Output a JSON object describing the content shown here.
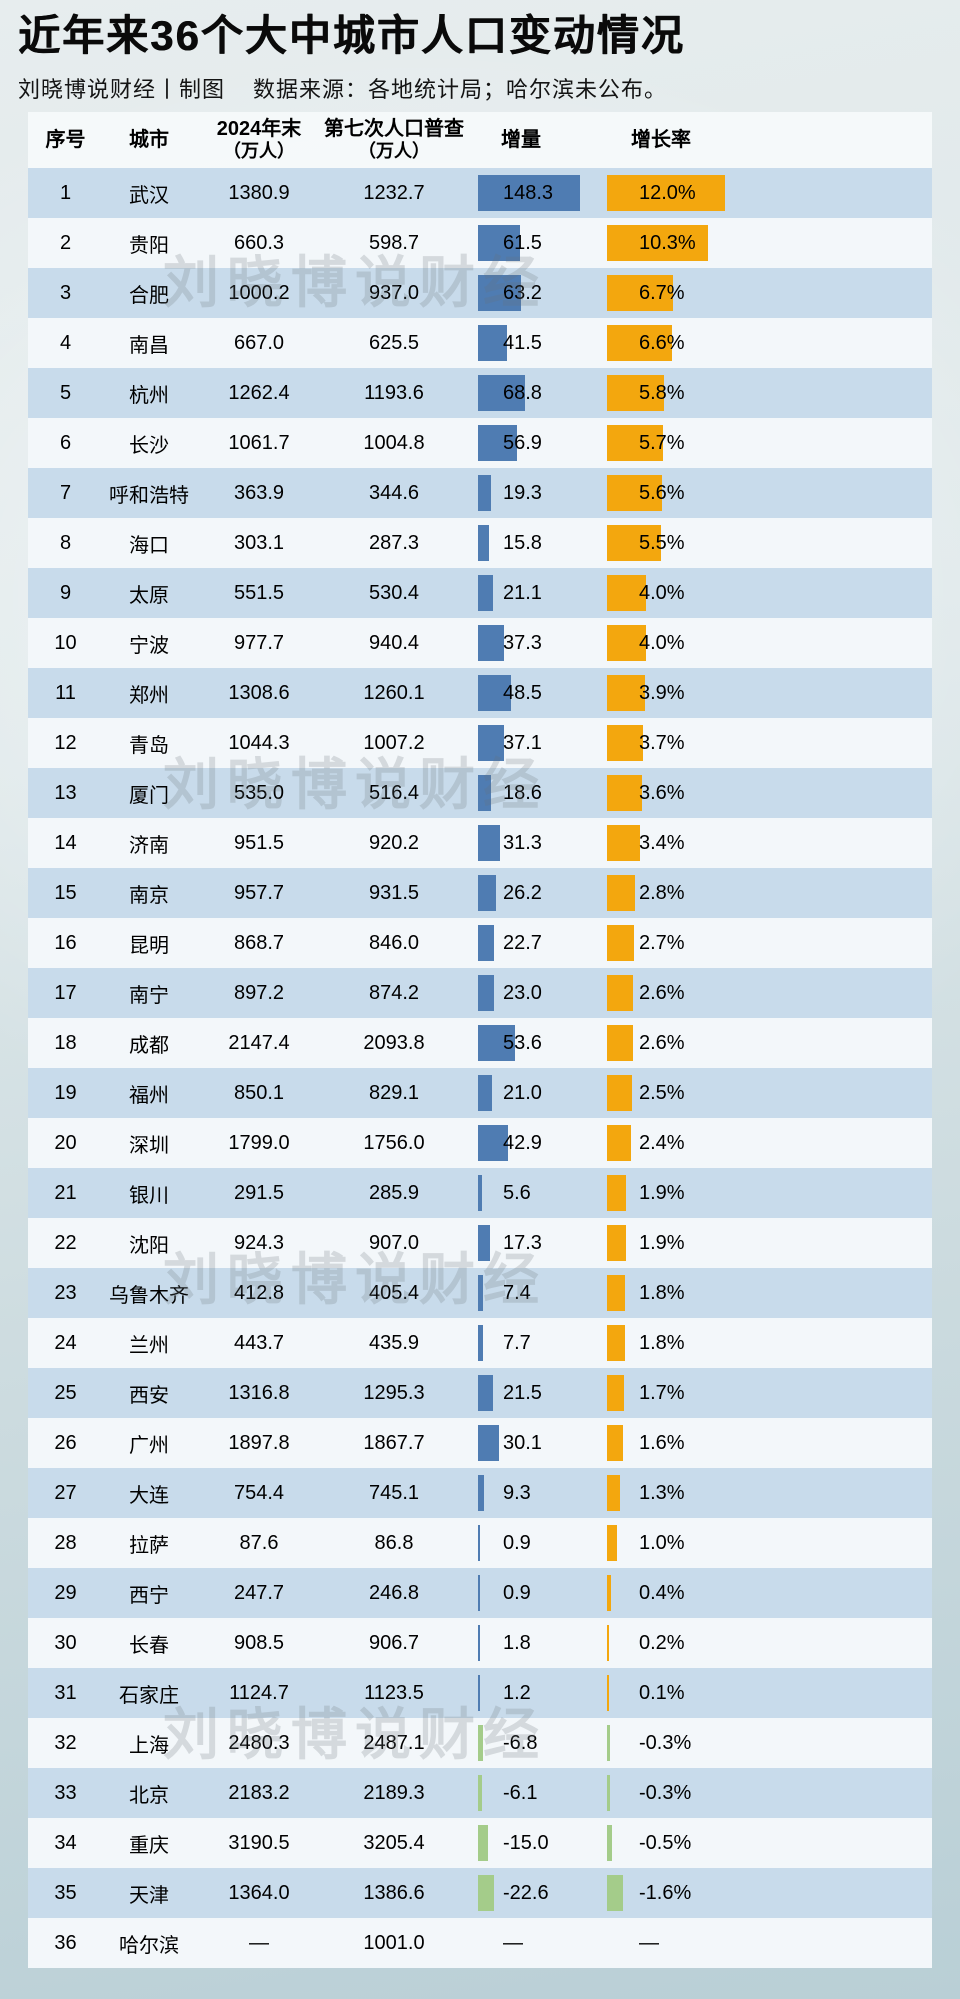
{
  "page": {
    "title": "近年来36个大中城市人口变动情况",
    "byline": "刘晓博说财经丨制图",
    "source_note": "数据来源：各地统计局；哈尔滨未公布。"
  },
  "watermark": {
    "text": "刘晓博说财经"
  },
  "chart_data": {
    "type": "table",
    "title": "近年来36个大中城市人口变动情况",
    "subtitle": "刘晓博说财经丨制图  数据来源：各地统计局；哈尔滨未公布。",
    "bar_columns": {
      "delta": {
        "max_abs_value": 148.3,
        "unit": "万人"
      },
      "rate": {
        "max_abs_value": 12.0,
        "unit": "%"
      }
    },
    "colors": {
      "delta_bar": "#4f7cb2",
      "rate_bar": "#f3a70e",
      "negative_bar": "#a4cc8a",
      "row_stripe": "#c8dbeb",
      "row_plain": "#f3f7fa"
    },
    "columns": [
      {
        "label": "序号"
      },
      {
        "label": "城市"
      },
      {
        "label": "2024年末",
        "sub": "（万人）"
      },
      {
        "label": "第七次人口普查",
        "sub": "（万人）"
      },
      {
        "label": "增量"
      },
      {
        "label": "增长率"
      }
    ],
    "row_fields": [
      "no",
      "city",
      "pop_2024",
      "census_7th",
      "delta_label",
      "delta_value",
      "rate_label",
      "rate_value"
    ],
    "rows": [
      [
        "1",
        "武汉",
        "1380.9",
        "1232.7",
        "148.3",
        148.3,
        "12.0%",
        12.0
      ],
      [
        "2",
        "贵阳",
        "660.3",
        "598.7",
        "61.5",
        61.5,
        "10.3%",
        10.3
      ],
      [
        "3",
        "合肥",
        "1000.2",
        "937.0",
        "63.2",
        63.2,
        "6.7%",
        6.7
      ],
      [
        "4",
        "南昌",
        "667.0",
        "625.5",
        "41.5",
        41.5,
        "6.6%",
        6.6
      ],
      [
        "5",
        "杭州",
        "1262.4",
        "1193.6",
        "68.8",
        68.8,
        "5.8%",
        5.8
      ],
      [
        "6",
        "长沙",
        "1061.7",
        "1004.8",
        "56.9",
        56.9,
        "5.7%",
        5.7
      ],
      [
        "7",
        "呼和浩特",
        "363.9",
        "344.6",
        "19.3",
        19.3,
        "5.6%",
        5.6
      ],
      [
        "8",
        "海口",
        "303.1",
        "287.3",
        "15.8",
        15.8,
        "5.5%",
        5.5
      ],
      [
        "9",
        "太原",
        "551.5",
        "530.4",
        "21.1",
        21.1,
        "4.0%",
        4.0
      ],
      [
        "10",
        "宁波",
        "977.7",
        "940.4",
        "37.3",
        37.3,
        "4.0%",
        4.0
      ],
      [
        "11",
        "郑州",
        "1308.6",
        "1260.1",
        "48.5",
        48.5,
        "3.9%",
        3.9
      ],
      [
        "12",
        "青岛",
        "1044.3",
        "1007.2",
        "37.1",
        37.1,
        "3.7%",
        3.7
      ],
      [
        "13",
        "厦门",
        "535.0",
        "516.4",
        "18.6",
        18.6,
        "3.6%",
        3.6
      ],
      [
        "14",
        "济南",
        "951.5",
        "920.2",
        "31.3",
        31.3,
        "3.4%",
        3.4
      ],
      [
        "15",
        "南京",
        "957.7",
        "931.5",
        "26.2",
        26.2,
        "2.8%",
        2.8
      ],
      [
        "16",
        "昆明",
        "868.7",
        "846.0",
        "22.7",
        22.7,
        "2.7%",
        2.7
      ],
      [
        "17",
        "南宁",
        "897.2",
        "874.2",
        "23.0",
        23.0,
        "2.6%",
        2.6
      ],
      [
        "18",
        "成都",
        "2147.4",
        "2093.8",
        "53.6",
        53.6,
        "2.6%",
        2.6
      ],
      [
        "19",
        "福州",
        "850.1",
        "829.1",
        "21.0",
        21.0,
        "2.5%",
        2.5
      ],
      [
        "20",
        "深圳",
        "1799.0",
        "1756.0",
        "42.9",
        42.9,
        "2.4%",
        2.4
      ],
      [
        "21",
        "银川",
        "291.5",
        "285.9",
        "5.6",
        5.6,
        "1.9%",
        1.9
      ],
      [
        "22",
        "沈阳",
        "924.3",
        "907.0",
        "17.3",
        17.3,
        "1.9%",
        1.9
      ],
      [
        "23",
        "乌鲁木齐",
        "412.8",
        "405.4",
        "7.4",
        7.4,
        "1.8%",
        1.8
      ],
      [
        "24",
        "兰州",
        "443.7",
        "435.9",
        "7.7",
        7.7,
        "1.8%",
        1.8
      ],
      [
        "25",
        "西安",
        "1316.8",
        "1295.3",
        "21.5",
        21.5,
        "1.7%",
        1.7
      ],
      [
        "26",
        "广州",
        "1897.8",
        "1867.7",
        "30.1",
        30.1,
        "1.6%",
        1.6
      ],
      [
        "27",
        "大连",
        "754.4",
        "745.1",
        "9.3",
        9.3,
        "1.3%",
        1.3
      ],
      [
        "28",
        "拉萨",
        "87.6",
        "86.8",
        "0.9",
        0.9,
        "1.0%",
        1.0
      ],
      [
        "29",
        "西宁",
        "247.7",
        "246.8",
        "0.9",
        0.9,
        "0.4%",
        0.4
      ],
      [
        "30",
        "长春",
        "908.5",
        "906.7",
        "1.8",
        1.8,
        "0.2%",
        0.2
      ],
      [
        "31",
        "石家庄",
        "1124.7",
        "1123.5",
        "1.2",
        1.2,
        "0.1%",
        0.1
      ],
      [
        "32",
        "上海",
        "2480.3",
        "2487.1",
        "-6.8",
        -6.8,
        "-0.3%",
        -0.3
      ],
      [
        "33",
        "北京",
        "2183.2",
        "2189.3",
        "-6.1",
        -6.1,
        "-0.3%",
        -0.3
      ],
      [
        "34",
        "重庆",
        "3190.5",
        "3205.4",
        "-15.0",
        -15.0,
        "-0.5%",
        -0.5
      ],
      [
        "35",
        "天津",
        "1364.0",
        "1386.6",
        "-22.6",
        -22.6,
        "-1.6%",
        -1.6
      ],
      [
        "36",
        "哈尔滨",
        "—",
        "1001.0",
        "—",
        null,
        "—",
        null
      ]
    ]
  }
}
